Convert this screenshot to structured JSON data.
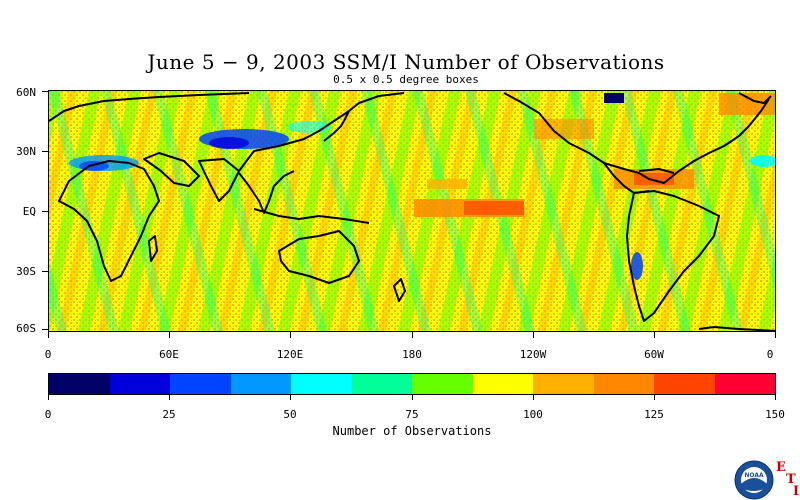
{
  "title": "June 5 − 9, 2003 SSM/I Number of Observations",
  "subtitle": "0.5 x 0.5 degree boxes",
  "map": {
    "lat_labels": [
      "60N",
      "30N",
      "EQ",
      "30S",
      "60S"
    ],
    "lon_labels": [
      "0",
      "60E",
      "120E",
      "180",
      "120W",
      "60W",
      "0"
    ],
    "projection": "cylindrical equidistant, 0 to 360 longitude, 60S to 60N",
    "dominant_colors": [
      "#ffff00",
      "#ffaa00",
      "#66ff00",
      "#00ff99"
    ]
  },
  "colorbar": {
    "title": "Number of Observations",
    "tick_labels": [
      "0",
      "25",
      "50",
      "75",
      "100",
      "125",
      "150"
    ],
    "colors": [
      "#000066",
      "#0000dd",
      "#0044ff",
      "#0099ff",
      "#00ffff",
      "#00ff99",
      "#66ff00",
      "#ffff00",
      "#ffb000",
      "#ff8800",
      "#ff4400",
      "#ff0033"
    ]
  },
  "logo": {
    "name": "noaa-logo",
    "text": "NOAA",
    "side_letters": [
      "E",
      "T",
      "I"
    ]
  }
}
